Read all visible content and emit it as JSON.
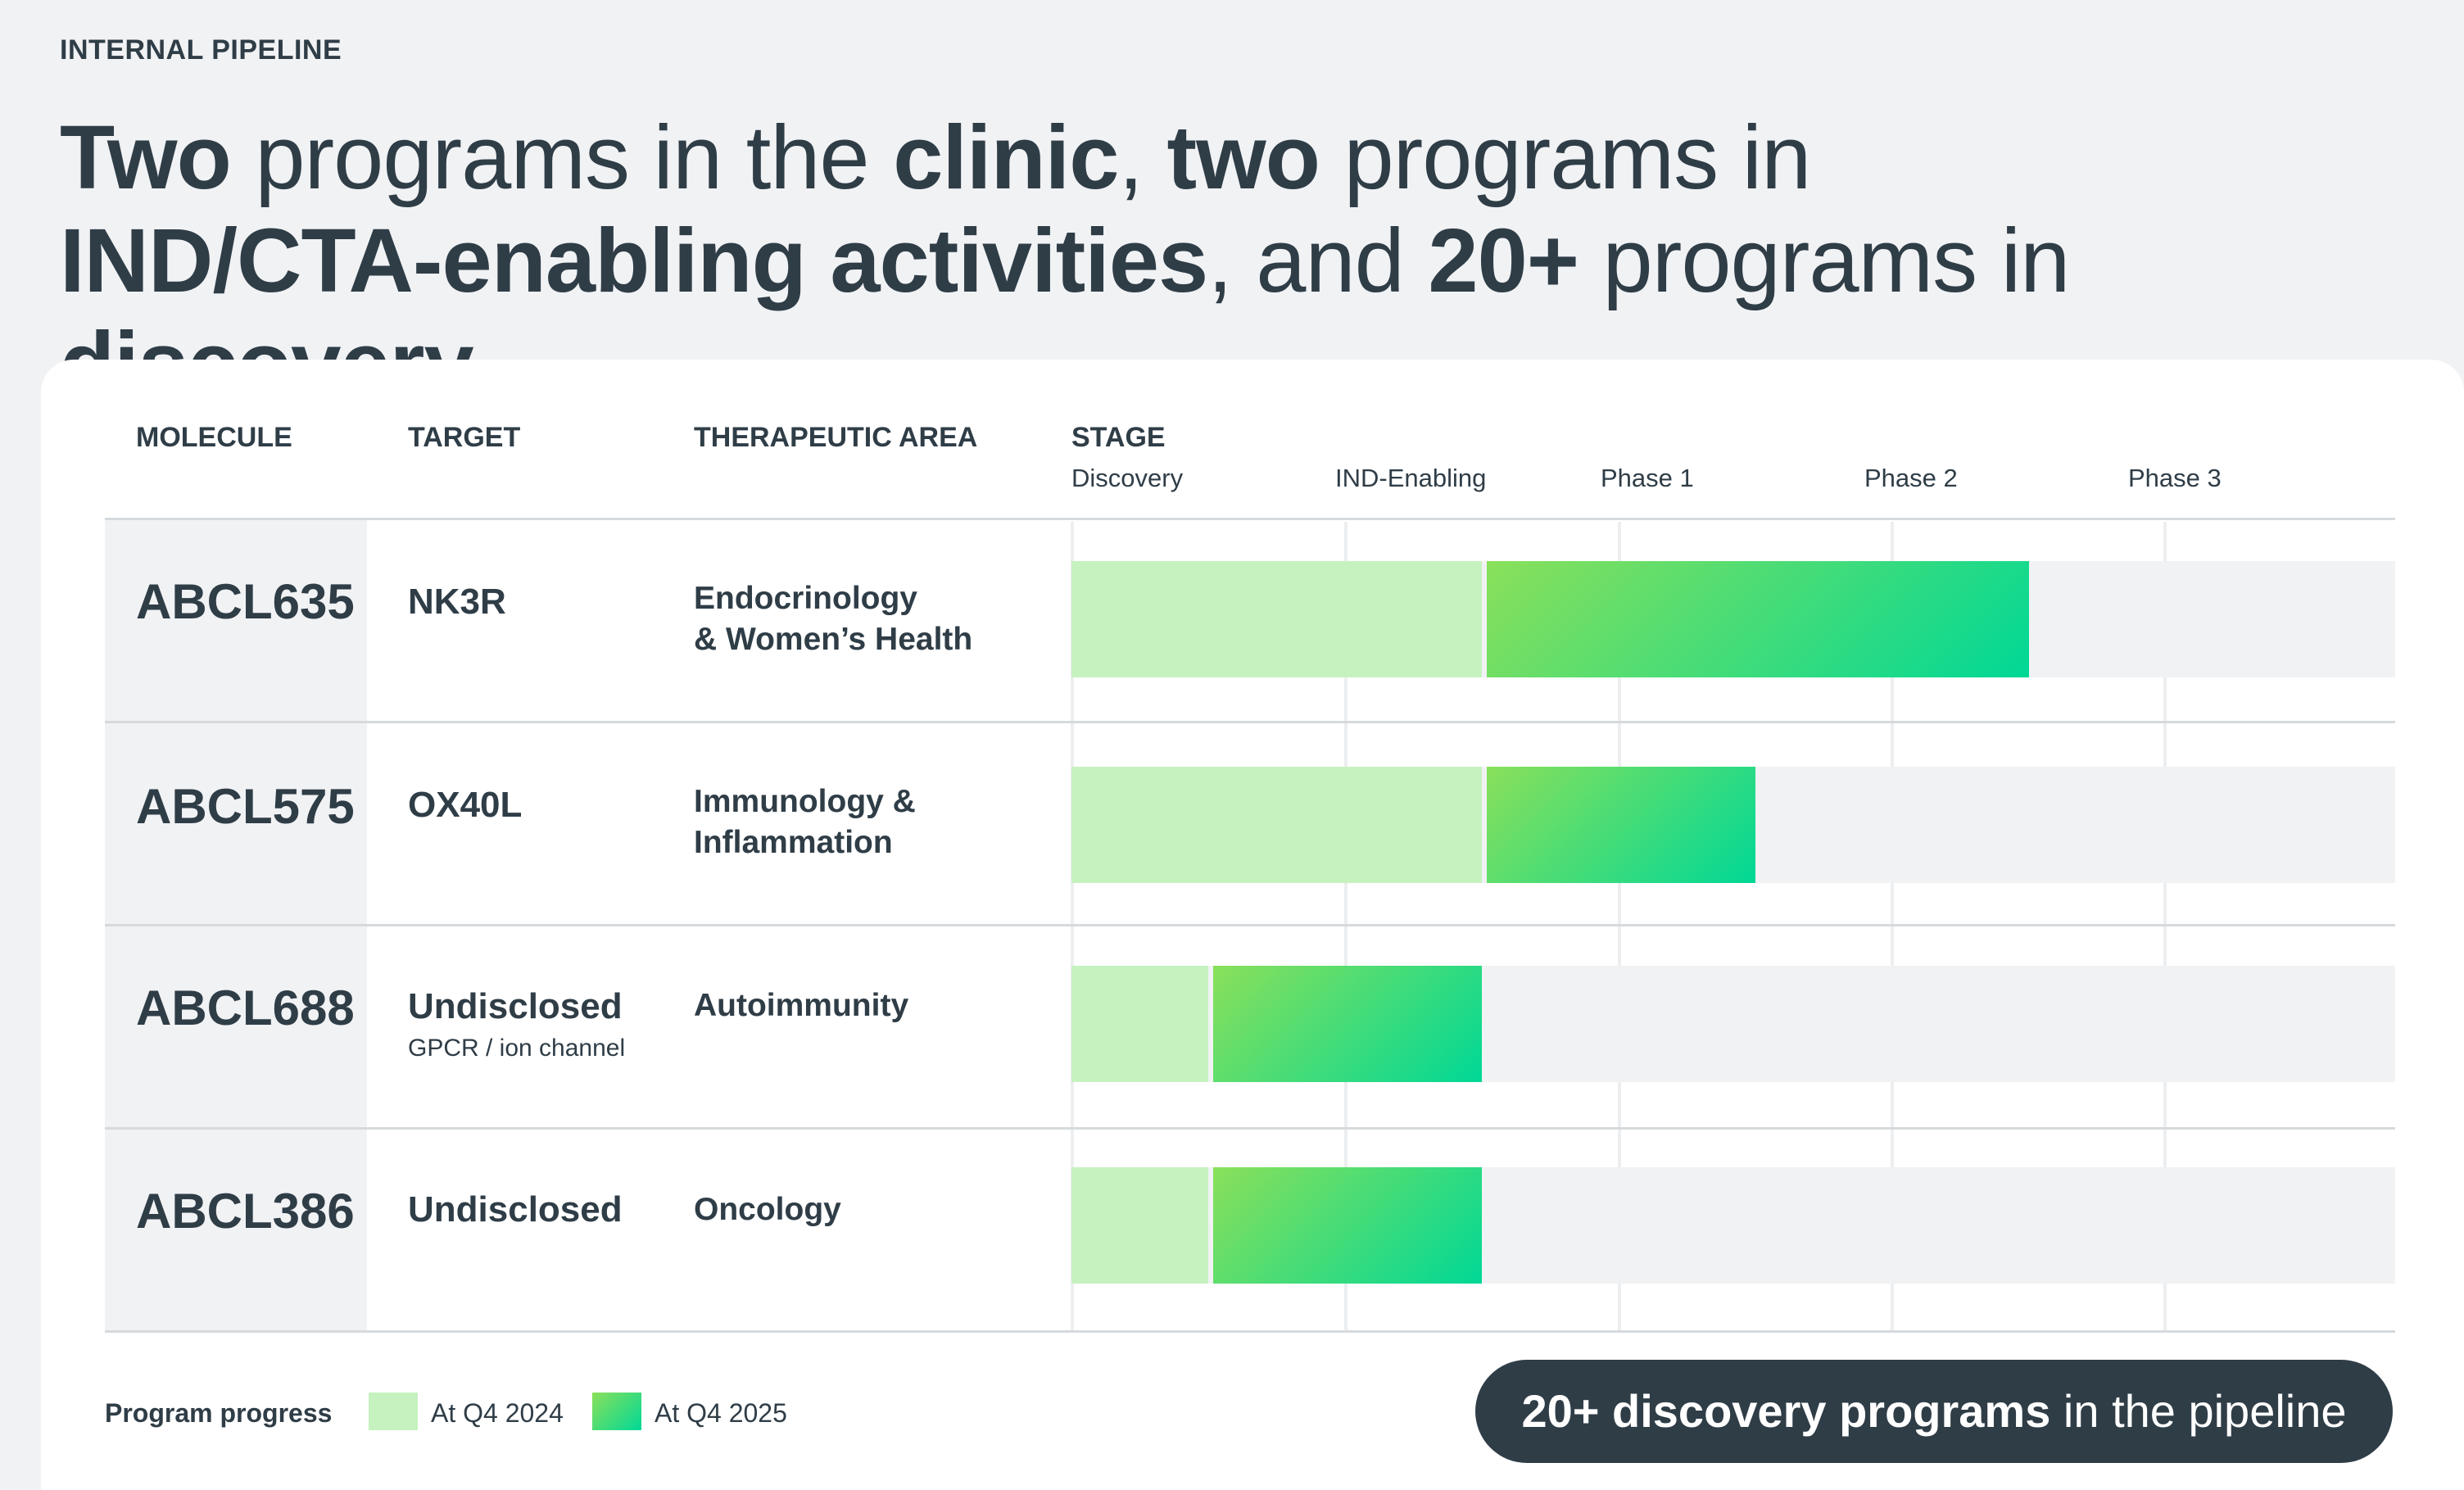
{
  "eyebrow": "INTERNAL PIPELINE",
  "headline": {
    "p1": "Two",
    "p2": " programs in the ",
    "p3": "clinic",
    "p4": ", ",
    "p5": "two",
    "p6": " programs in",
    "p7": "IND/CTA-enabling activities",
    "p8": ", and ",
    "p9": "20+",
    "p10": " programs in ",
    "p11": "discovery."
  },
  "table": {
    "headers": {
      "molecule": "MOLECULE",
      "target": "TARGET",
      "area": "THERAPEUTIC AREA",
      "stage": "STAGE"
    },
    "stages": [
      "Discovery",
      "IND-Enabling",
      "Phase 1",
      "Phase 2",
      "Phase 3"
    ],
    "rows": [
      {
        "molecule": "ABCL635",
        "target": "NK3R",
        "target_sub": "",
        "area_line1": "Endocrinology",
        "area_line2": "& Women’s Health",
        "progress_q4_2024": 1.5,
        "progress_q4_2025": 3.5
      },
      {
        "molecule": "ABCL575",
        "target": "OX40L",
        "target_sub": "",
        "area_line1": "Immunology &",
        "area_line2": "Inflammation",
        "progress_q4_2024": 1.5,
        "progress_q4_2025": 2.5
      },
      {
        "molecule": "ABCL688",
        "target": "Undisclosed",
        "target_sub": "GPCR / ion channel",
        "area_line1": "Autoimmunity",
        "area_line2": "",
        "progress_q4_2024": 0.5,
        "progress_q4_2025": 1.5
      },
      {
        "molecule": "ABCL386",
        "target": "Undisclosed",
        "target_sub": "",
        "area_line1": "Oncology",
        "area_line2": "",
        "progress_q4_2024": 0.5,
        "progress_q4_2025": 1.5
      }
    ]
  },
  "legend": {
    "title": "Program progress",
    "items": [
      {
        "label": "At Q4 2024",
        "color": "#c6f2c0"
      },
      {
        "label": "At Q4 2025",
        "color": "#3ddc7a"
      }
    ]
  },
  "callout": {
    "bold": "20+ discovery programs",
    "rest": " in the pipeline"
  },
  "colors": {
    "dark": "#2f3d47",
    "prev_bar": "#c6f2c0",
    "cur_bar_start": "#8ae05a",
    "cur_bar_end": "#00d896",
    "track": "#f1f2f4"
  }
}
